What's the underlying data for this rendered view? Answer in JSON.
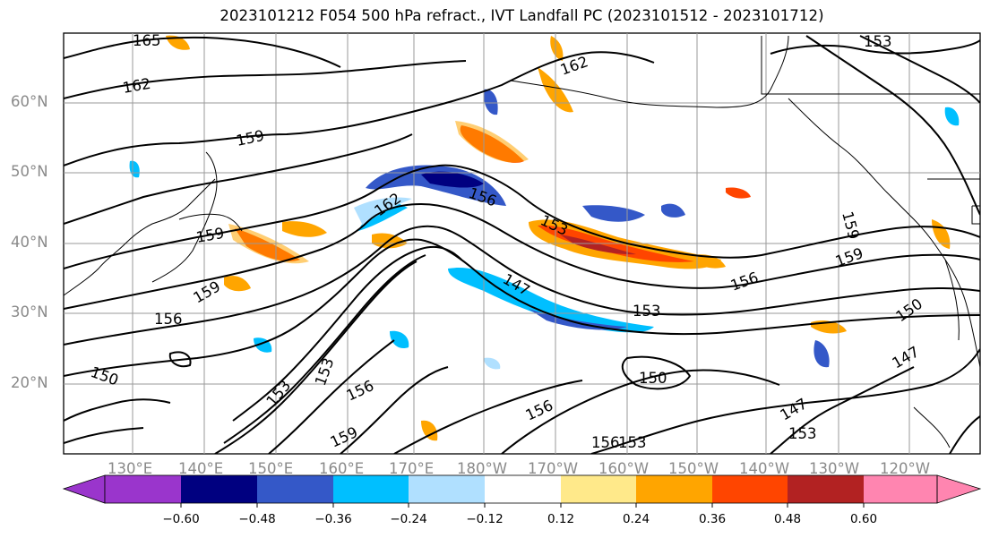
{
  "title": "2023101212 F054 500 hPa refract., IVT Landfall PC (2023101512 - 2023101712)",
  "lat_labels": [
    "60°N",
    "50°N",
    "40°N",
    "30°N",
    "20°N"
  ],
  "lon_labels": [
    "130°E",
    "140°E",
    "150°E",
    "160°E",
    "170°E",
    "180°W",
    "170°W",
    "160°W",
    "150°W",
    "140°W",
    "130°W",
    "120°W"
  ],
  "contour_labels": [
    "165",
    "162",
    "159",
    "162",
    "156",
    "153",
    "162",
    "159",
    "159",
    "156",
    "156",
    "153",
    "147",
    "153",
    "150",
    "159",
    "150",
    "147",
    "153",
    "156",
    "159",
    "156",
    "150",
    "156",
    "153",
    "147",
    "153",
    "153",
    "159"
  ],
  "colorbar": {
    "tick_labels": [
      "−0.60",
      "−0.48",
      "−0.36",
      "−0.24",
      "−0.12",
      "0.12",
      "0.24",
      "0.36",
      "0.48",
      "0.60"
    ],
    "colors": [
      "#9a35cc",
      "#000080",
      "#3458c8",
      "#00bfff",
      "#b0e0ff",
      "#ffffff",
      "#ffe98a",
      "#ffa500",
      "#ff4500",
      "#b22222",
      "#ff85b0"
    ]
  }
}
